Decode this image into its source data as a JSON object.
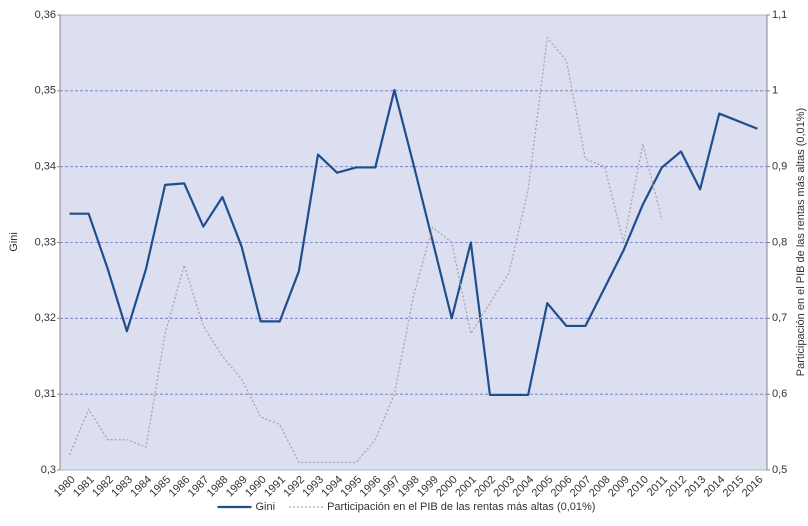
{
  "chart_data": {
    "type": "line",
    "y_label": "Gini",
    "y2_label": "Participación en el PIB de las rentas más altas (0,01%)",
    "categories": [
      "1980",
      "1981",
      "1982",
      "1983",
      "1984",
      "1985",
      "1986",
      "1987",
      "1988",
      "1989",
      "1990",
      "1991",
      "1992",
      "1993",
      "1994",
      "1995",
      "1996",
      "1997",
      "1998",
      "1999",
      "2000",
      "2001",
      "2002",
      "2003",
      "2004",
      "2005",
      "2006",
      "2007",
      "2008",
      "2009",
      "2010",
      "2011",
      "2012",
      "2013",
      "2014",
      "2015",
      "2016"
    ],
    "series": [
      {
        "name": "Gini",
        "color": "#1f4e8c",
        "style": "solid",
        "values": [
          0.3338,
          0.3338,
          0.3265,
          0.3183,
          0.3265,
          0.3376,
          0.3378,
          0.3321,
          0.336,
          0.3295,
          0.3196,
          0.3196,
          0.3262,
          0.3416,
          0.3392,
          0.3399,
          0.3399,
          0.3501,
          0.3403,
          0.3302,
          0.32,
          0.33,
          0.3099,
          0.3099,
          0.3099,
          0.322,
          0.319,
          0.319,
          0.324,
          0.329,
          0.335,
          0.3399,
          0.342,
          0.337,
          0.347,
          0.346,
          0.345
        ]
      },
      {
        "name": "Participación en el PIB de las rentas más altas (0,01%)",
        "color": "#a8a8a8",
        "style": "dotted",
        "axis": "y2",
        "values": [
          0.52,
          0.58,
          0.54,
          0.54,
          0.53,
          0.68,
          0.77,
          0.69,
          0.65,
          0.62,
          0.57,
          0.56,
          0.51,
          0.51,
          0.51,
          0.51,
          0.54,
          0.6,
          0.73,
          0.82,
          0.8,
          0.68,
          0.72,
          0.76,
          0.87,
          1.07,
          1.04,
          0.91,
          0.9,
          0.8,
          0.93,
          0.83,
          null,
          null,
          null,
          null,
          null
        ]
      }
    ],
    "ylim": [
      0.3,
      0.36
    ],
    "yticks": [
      {
        "value": 0.3,
        "label": "0,3"
      },
      {
        "value": 0.31,
        "label": "0,31"
      },
      {
        "value": 0.32,
        "label": "0,32"
      },
      {
        "value": 0.33,
        "label": "0,33"
      },
      {
        "value": 0.34,
        "label": "0,34"
      },
      {
        "value": 0.35,
        "label": "0,35"
      },
      {
        "value": 0.36,
        "label": "0,36"
      }
    ],
    "y2lim": [
      0.5,
      1.1
    ],
    "y2ticks": [
      {
        "value": 0.5,
        "label": "0,5"
      },
      {
        "value": 0.6,
        "label": "0,6"
      },
      {
        "value": 0.7,
        "label": "0,7"
      },
      {
        "value": 0.8,
        "label": "0,8"
      },
      {
        "value": 0.9,
        "label": "0,9"
      },
      1,
      {
        "value": 1.1,
        "label": "1,1"
      }
    ],
    "grid": true,
    "legend": "bottom"
  }
}
